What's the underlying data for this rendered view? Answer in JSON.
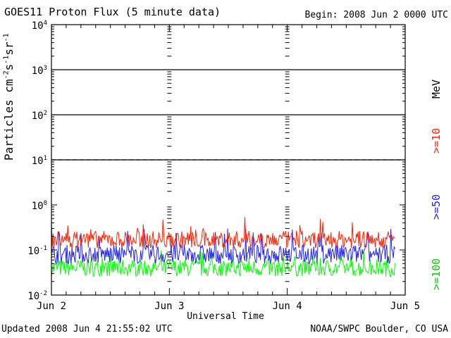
{
  "header": {
    "title": "GOES11 Proton Flux (5 minute data)",
    "begin": "Begin: 2008 Jun 2 0000 UTC"
  },
  "footer": {
    "updated": "Updated 2008 Jun  4 21:55:02 UTC",
    "credit": "NOAA/SWPC Boulder, CO USA"
  },
  "chart_data": {
    "type": "line",
    "title": "GOES11 Proton Flux (5 minute data)",
    "xlabel": "Universal Time",
    "ylabel_base": "Particles cm",
    "ylabel_parts": [
      "-2",
      "s",
      "-1",
      "sr",
      "-1"
    ],
    "yscale": "log",
    "ylim": [
      0.01,
      10000
    ],
    "y_ticks": [
      {
        "base": "10",
        "exp": "-2"
      },
      {
        "base": "10",
        "exp": "-1"
      },
      {
        "base": "10",
        "exp": "0"
      },
      {
        "base": "10",
        "exp": "1"
      },
      {
        "base": "10",
        "exp": "2"
      },
      {
        "base": "10",
        "exp": "3"
      },
      {
        "base": "10",
        "exp": "4"
      }
    ],
    "x_ticks": [
      "Jun 2",
      "Jun 3",
      "Jun 4",
      "Jun 5"
    ],
    "xlim_days": [
      0,
      3
    ],
    "data_end_day": 2.913,
    "unit_label": "MeV",
    "grid": "solid at 10^0, 10^2, 10^3; dashed at 10^1",
    "series": [
      {
        "name": ">=10",
        "color": "#ff2000",
        "typical": 0.17,
        "min": 0.11,
        "max": 0.55
      },
      {
        "name": ">=50",
        "color": "#2020ff",
        "typical": 0.08,
        "min": 0.05,
        "max": 0.3
      },
      {
        "name": ">=100",
        "color": "#00ff00",
        "typical": 0.04,
        "min": 0.02,
        "max": 0.1
      }
    ]
  }
}
